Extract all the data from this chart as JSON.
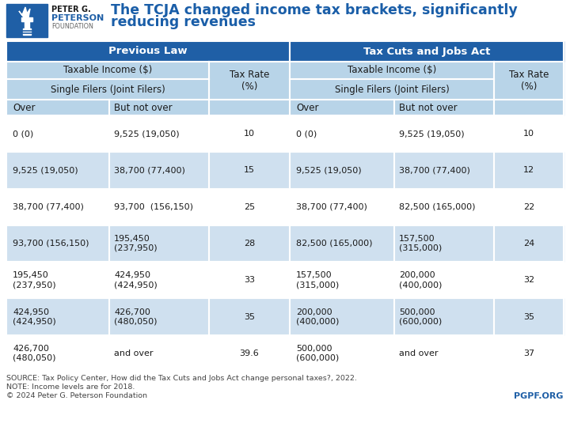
{
  "title_line1": "The TCJA changed income tax brackets, significantly",
  "title_line2": "reducing revenues",
  "title_color": "#1a5ea8",
  "header1": "Previous Law",
  "header2": "Tax Cuts and Jobs Act",
  "header_bg": "#1f5fa6",
  "header_text_color": "#ffffff",
  "subheader_bg": "#b8d4e8",
  "col_header_bg": "#b8d4e8",
  "row_alt_bg": "#cfe0ef",
  "row_bg": "#ffffff",
  "source_text_line1": "SOURCE: Tax Policy Center, How did the Tax Cuts and Jobs Act change personal taxes?, 2022.",
  "source_text_line2": "NOTE: Income levels are for 2018.",
  "source_text_line3": "© 2024 Peter G. Peterson Foundation",
  "pgpf_text": "PGPF.ORG",
  "pgpf_color": "#1f5fa6",
  "logo_bg": "#1f5fa6",
  "prev_law_rows": [
    [
      "0 (0)",
      "9,525 (19,050)",
      "10"
    ],
    [
      "9,525 (19,050)",
      "38,700 (77,400)",
      "15"
    ],
    [
      "38,700 (77,400)",
      "93,700  (156,150)",
      "25"
    ],
    [
      "93,700 (156,150)",
      "195,450\n(237,950)",
      "28"
    ],
    [
      "195,450\n(237,950)",
      "424,950\n(424,950)",
      "33"
    ],
    [
      "424,950\n(424,950)",
      "426,700\n(480,050)",
      "35"
    ],
    [
      "426,700\n(480,050)",
      "and over",
      "39.6"
    ]
  ],
  "tcja_rows": [
    [
      "0 (0)",
      "9,525 (19,050)",
      "10"
    ],
    [
      "9,525 (19,050)",
      "38,700 (77,400)",
      "12"
    ],
    [
      "38,700 (77,400)",
      "82,500 (165,000)",
      "22"
    ],
    [
      "82,500 (165,000)",
      "157,500\n(315,000)",
      "24"
    ],
    [
      "157,500\n(315,000)",
      "200,000\n(400,000)",
      "32"
    ],
    [
      "200,000\n(400,000)",
      "500,000\n(600,000)",
      "35"
    ],
    [
      "500,000\n(600,000)",
      "and over",
      "37"
    ]
  ],
  "row_alt_indices": [
    1,
    3,
    5
  ],
  "figsize": [
    7.2,
    5.4
  ],
  "dpi": 100
}
